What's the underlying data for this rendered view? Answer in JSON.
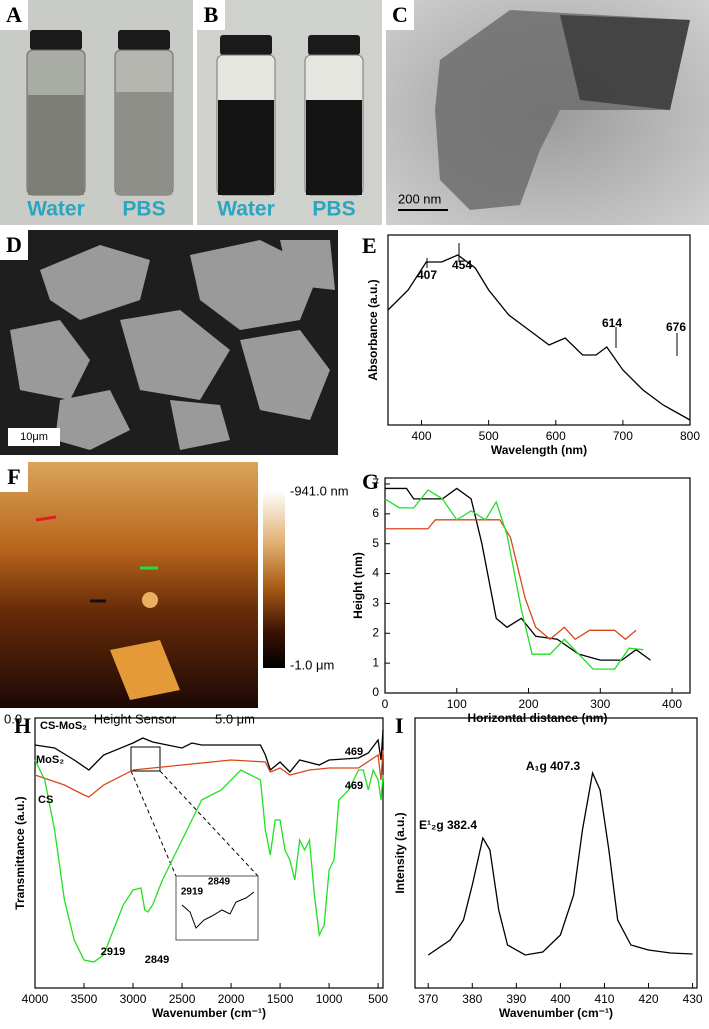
{
  "panels": [
    {
      "label": "A",
      "texts": [
        "Water",
        "PBS"
      ]
    },
    {
      "label": "B",
      "texts": [
        "Water",
        "PBS"
      ]
    },
    {
      "label": "C",
      "scale_bar": "200 nm"
    },
    {
      "label": "D",
      "scale_bar": "10μm"
    },
    {
      "label": "F",
      "colorbar_max": "-941.0 nm",
      "colorbar_min": "-1.0 μm",
      "axis_labels": [
        "0.0",
        "Height Sensor",
        "5.0 μm"
      ]
    }
  ],
  "chart_data": [
    {
      "type": "line",
      "panel_label": "E",
      "x_label": "Wavelength (nm)",
      "y_label": "Absorbance (a.u.)",
      "xlim": [
        350,
        800
      ],
      "xticks": [
        400,
        500,
        600,
        700,
        800
      ],
      "ylim": [
        0,
        190
      ],
      "series": [
        {
          "color": "#000000",
          "x": [
            350,
            380,
            407,
            430,
            454,
            480,
            500,
            530,
            560,
            590,
            614,
            640,
            660,
            676,
            700,
            730,
            760,
            800
          ],
          "values": [
            115,
            135,
            163,
            163,
            170,
            157,
            135,
            110,
            95,
            80,
            87,
            70,
            70,
            78,
            55,
            35,
            20,
            5
          ]
        }
      ],
      "annotations": [
        "407",
        "454",
        "614",
        "676"
      ]
    },
    {
      "type": "line",
      "panel_label": "G",
      "x_label": "Horizontal distance (nm)",
      "y_label": "Height (nm)",
      "xlim": [
        0,
        425
      ],
      "xticks": [
        0,
        100,
        200,
        300,
        400
      ],
      "ylim": [
        0,
        7.2
      ],
      "yticks": [
        0,
        1,
        2,
        3,
        4,
        5,
        6,
        7
      ],
      "series": [
        {
          "color": "#000000",
          "x": [
            0,
            30,
            40,
            80,
            100,
            120,
            135,
            155,
            170,
            190,
            210,
            240,
            270,
            300,
            330,
            350,
            370
          ],
          "values": [
            6.85,
            6.85,
            6.5,
            6.5,
            6.85,
            6.5,
            5,
            2.5,
            2.2,
            2.5,
            1.9,
            1.8,
            1.3,
            1.1,
            1.1,
            1.45,
            1.1
          ]
        },
        {
          "color": "#d9481c",
          "x": [
            0,
            60,
            70,
            160,
            175,
            195,
            210,
            230,
            250,
            265,
            285,
            320,
            335,
            350
          ],
          "values": [
            5.5,
            5.5,
            5.8,
            5.8,
            5.2,
            3.2,
            2.2,
            1.8,
            2.2,
            1.8,
            2.1,
            2.1,
            1.8,
            2.1
          ]
        },
        {
          "color": "#22e022",
          "x": [
            0,
            20,
            40,
            60,
            80,
            100,
            120,
            140,
            155,
            170,
            190,
            205,
            230,
            250,
            270,
            290,
            320,
            340,
            360
          ],
          "values": [
            6.5,
            6.2,
            6.2,
            6.8,
            6.5,
            5.8,
            6.1,
            5.8,
            6.4,
            5.3,
            2.8,
            1.3,
            1.3,
            1.8,
            1.3,
            0.8,
            0.8,
            1.5,
            1.45
          ]
        }
      ]
    },
    {
      "type": "line",
      "panel_label": "H",
      "x_label": "Wavenumber (cm⁻¹)",
      "y_label": "Transmittance (a.u.)",
      "xlim": [
        4000,
        450
      ],
      "xticks": [
        4000,
        3500,
        3000,
        2500,
        2000,
        1500,
        1000,
        500
      ],
      "ylim": [
        0,
        270
      ],
      "series": [
        {
          "name": "CS-MoS₂",
          "color": "#000000",
          "x": [
            4000,
            3800,
            3600,
            3450,
            3300,
            3000,
            2900,
            2800,
            2500,
            2400,
            2300,
            2000,
            1700,
            1650,
            1600,
            1500,
            1400,
            1300,
            1100,
            1000,
            700,
            600,
            500,
            470,
            450
          ],
          "values": [
            243,
            240,
            228,
            218,
            233,
            245,
            250,
            246,
            240,
            245,
            243,
            243,
            243,
            233,
            218,
            226,
            216,
            228,
            223,
            228,
            230,
            235,
            248,
            228,
            258
          ]
        },
        {
          "name": "MoS₂",
          "color": "#d9481c",
          "x": [
            4000,
            3700,
            3500,
            3450,
            3300,
            3000,
            2500,
            2000,
            1650,
            1600,
            1500,
            1400,
            1200,
            1000,
            700,
            500,
            470,
            450
          ],
          "values": [
            213,
            203,
            193,
            191,
            203,
            218,
            223,
            228,
            226,
            216,
            220,
            213,
            218,
            220,
            220,
            233,
            208,
            238
          ]
        },
        {
          "name": "CS",
          "color": "#22e022",
          "x": [
            4000,
            3900,
            3800,
            3700,
            3600,
            3500,
            3400,
            3300,
            3200,
            3100,
            3000,
            2919,
            2880,
            2849,
            2800,
            2700,
            2500,
            2300,
            2100,
            1900,
            1700,
            1650,
            1600,
            1550,
            1500,
            1450,
            1400,
            1350,
            1300,
            1250,
            1200,
            1150,
            1100,
            1050,
            1000,
            950,
            900,
            800,
            700,
            650,
            600,
            550,
            500,
            470,
            450
          ],
          "values": [
            228,
            208,
            158,
            88,
            48,
            28,
            26,
            33,
            58,
            83,
            98,
            100,
            78,
            76,
            83,
            108,
            148,
            188,
            198,
            218,
            208,
            158,
            133,
            168,
            168,
            138,
            128,
            108,
            148,
            138,
            148,
            93,
            53,
            63,
            118,
            128,
            188,
            198,
            218,
            218,
            198,
            218,
            208,
            188,
            213
          ]
        }
      ],
      "annotations": [
        "469",
        "469",
        "2919",
        "2849",
        "2919",
        "2849"
      ]
    },
    {
      "type": "line",
      "panel_label": "I",
      "x_label": "Wavenumber (cm⁻¹)",
      "y_label": "Intensity (a.u.)",
      "xlim": [
        367,
        431
      ],
      "xticks": [
        370,
        380,
        390,
        400,
        410,
        420,
        430
      ],
      "ylim": [
        0,
        270
      ],
      "series": [
        {
          "color": "#000000",
          "x": [
            370,
            375,
            378,
            380,
            382.4,
            384,
            386,
            388,
            392,
            396,
            400,
            403,
            405,
            407.3,
            409,
            411,
            413,
            416,
            420,
            425,
            430
          ],
          "values": [
            33,
            48,
            68,
            103,
            150,
            138,
            78,
            43,
            33,
            36,
            53,
            93,
            158,
            215,
            198,
            138,
            68,
            43,
            38,
            35,
            34
          ]
        }
      ],
      "annotations": [
        "E¹₂g 382.4",
        "A₁g 407.3"
      ]
    }
  ]
}
